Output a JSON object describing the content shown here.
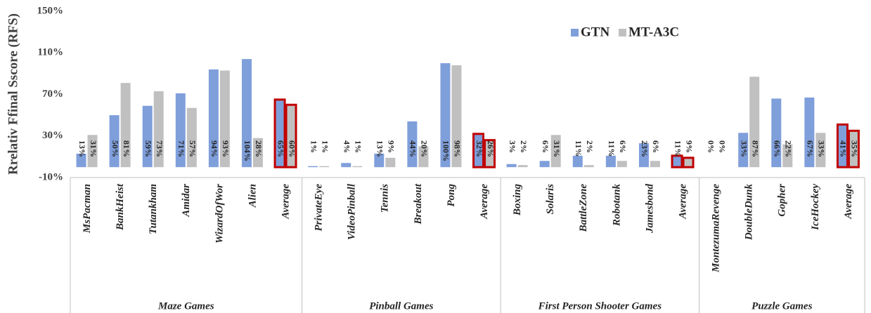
{
  "chart_data": {
    "type": "bar",
    "y_label": "Rrelativ Ffinal Sscore (RFS)",
    "group_labels": [
      "Maze Games",
      "Pinball Games",
      "First Person Shooter Games",
      "Puzzle Games"
    ],
    "categories": [
      [
        "MsPacman",
        "BankHeist",
        "Tutankham",
        "Amidar",
        "WizardOfWor",
        "Alien",
        "Average"
      ],
      [
        "PrivateEye",
        "VideoPinball",
        "Tennis",
        "Breakout",
        "Pong",
        "Average"
      ],
      [
        "Boxing",
        "Solaris",
        "BattleZone",
        "Robotank",
        "Jamesbond",
        "Average"
      ],
      [
        "MontezumaRevenge",
        "DoubleDunk",
        "Gopher",
        "IceHockey",
        "Average"
      ]
    ],
    "series": [
      {
        "name": "GTN",
        "color": "#7f9fdb",
        "values": [
          [
            13,
            50,
            59,
            71,
            94,
            104,
            65
          ],
          [
            1,
            4,
            13,
            44,
            100,
            32
          ],
          [
            3,
            6,
            11,
            11,
            23,
            11
          ],
          [
            0,
            33,
            66,
            67,
            41
          ]
        ],
        "value_labels": [
          [
            "13%",
            "50%",
            "59%",
            "71%",
            "94%",
            "104%",
            "65%"
          ],
          [
            "1%",
            "4%",
            "13%",
            "44%",
            "100%",
            "32%"
          ],
          [
            "3%",
            "6%",
            "11%",
            "11%",
            "23%",
            "11%"
          ],
          [
            "0%",
            "33%",
            "66%",
            "67%",
            "41%"
          ]
        ]
      },
      {
        "name": "MT-A3C",
        "color": "#c0c0c0",
        "values": [
          [
            31,
            81,
            73,
            57,
            93,
            28,
            60
          ],
          [
            1,
            1,
            9,
            20,
            98,
            26
          ],
          [
            2,
            31,
            2,
            6,
            6,
            9
          ],
          [
            0,
            87,
            22,
            33,
            35
          ]
        ],
        "value_labels": [
          [
            "31%",
            "81%",
            "73%",
            "57%",
            "93%",
            "28%",
            "60%"
          ],
          [
            "1%",
            "1%",
            "9%",
            "20%",
            "98%",
            "26%"
          ],
          [
            "2%",
            "31%",
            "2%",
            "6%",
            "6%",
            "9%"
          ],
          [
            "0%",
            "87%",
            "22%",
            "33%",
            "35%"
          ]
        ]
      }
    ],
    "highlight_color": "#c00000",
    "ylim": [
      -10,
      150
    ],
    "yticks": [
      {
        "value": -10,
        "label": "-10%"
      },
      {
        "value": 30,
        "label": "30%"
      },
      {
        "value": 70,
        "label": "70%"
      },
      {
        "value": 110,
        "label": "110%"
      },
      {
        "value": 150,
        "label": "150%"
      }
    ],
    "grid": false,
    "legend": "top-right"
  }
}
